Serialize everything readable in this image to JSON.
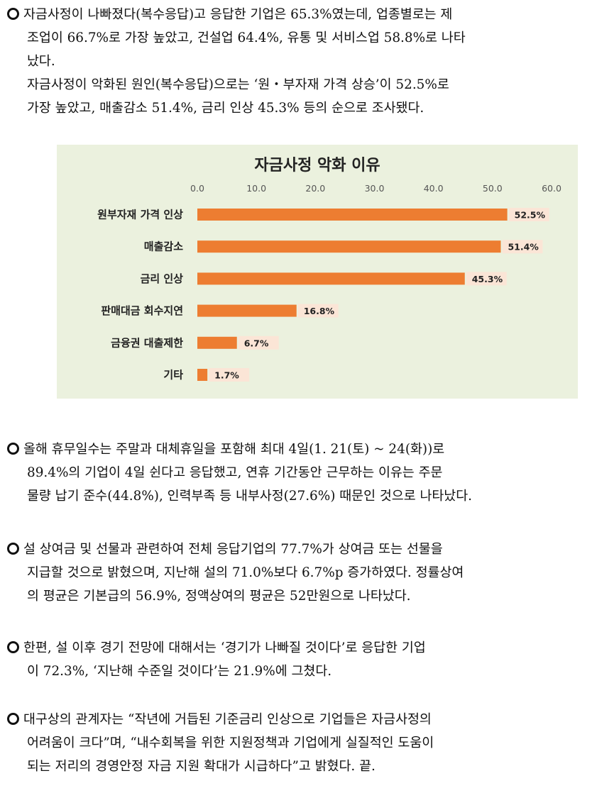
{
  "paragraphs": [
    {
      "first_line": "자금사정이 나빠졌다(복수응답)고 응답한 기업은 65.3%였는데, 업종별로는 제",
      "lines": [
        "조업이 66.7%로 가장 높았고, 건설업 64.4%, 유통 및 서비스업 58.8%로 나타",
        "났다.",
        "자금사정이 악화된 원인(복수응답)으로는 ‘원・부자재 가격 상승’이 52.5%로",
        "가장 높았고, 매출감소 51.4%, 금리 인상 45.3% 등의 순으로 조사됐다."
      ]
    },
    {
      "first_line": "올해 휴무일수는 주말과 대체휴일을 포함해 최대 4일(1. 21(토) ~ 24(화))로",
      "lines": [
        "89.4%의 기업이 4일 쉰다고 응답했고, 연휴 기간동안 근무하는 이유는 주문",
        "물량 납기 준수(44.8%), 인력부족 등 내부사정(27.6%) 때문인 것으로 나타났다."
      ]
    },
    {
      "first_line": "설 상여금 및 선물과 관련하여 전체 응답기업의 77.7%가 상여금 또는 선물을",
      "lines": [
        "지급할 것으로 밝혔으며, 지난해 설의 71.0%보다 6.7%p 증가하였다. 정률상여",
        "의 평균은 기본급의 56.9%, 정액상여의 평균은 52만원으로 나타났다."
      ]
    },
    {
      "first_line": "한편, 설 이후 경기 전망에 대해서는 ‘경기가 나빠질 것이다’로 응답한 기업",
      "lines": [
        "이 72.3%, ‘지난해 수준일 것이다’는 21.9%에 그쳤다."
      ]
    },
    {
      "first_line": "대구상의 관계자는 “작년에 거듭된 기준금리 인상으로 기업들은 자금사정의",
      "lines": [
        "어려움이 크다”며, “내수회복을 위한 지원정책과 기업에게 실질적인 도움이",
        "되는 저리의 경영안정 자금 지원 확대가 시급하다”고 밝혔다.  끝."
      ]
    }
  ],
  "chart_data": {
    "type": "bar",
    "orientation": "horizontal",
    "title": "자금사정 악화 이유",
    "categories": [
      "원부자재 가격 인상",
      "매출감소",
      "금리 인상",
      "판매대금 회수지연",
      "금융권 대출제한",
      "기타"
    ],
    "values": [
      52.5,
      51.4,
      45.3,
      16.8,
      6.7,
      1.7
    ],
    "value_labels": [
      "52.5%",
      "51.4%",
      "45.3%",
      "16.8%",
      "6.7%",
      "1.7%"
    ],
    "x_ticks": [
      "0.0",
      "10.0",
      "20.0",
      "30.0",
      "40.0",
      "50.0",
      "60.0"
    ],
    "xlim": [
      0,
      60
    ],
    "x_axis_position": "top",
    "grid": false,
    "bar_color": "#ed7d31",
    "label_bg_color": "#fbe5d6",
    "background_color": "#ebf1de"
  }
}
